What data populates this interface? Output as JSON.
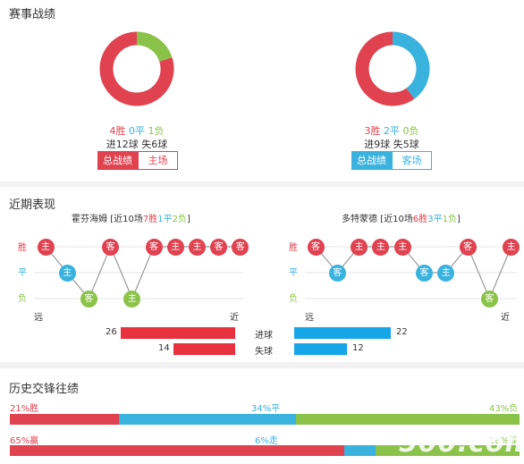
{
  "sections": {
    "record_title": "赛事战绩",
    "recent_title": "近期表现",
    "history_title": "历史交锋往绩"
  },
  "colors": {
    "win": "#e04250",
    "draw": "#3ab2de",
    "loss": "#8bc34a"
  },
  "home": {
    "pie": {
      "win": 4,
      "draw": 0,
      "loss": 1
    },
    "win_text": "4胜",
    "draw_text": "0平",
    "loss_text": "1负",
    "goals_text": "进12球",
    "conceded_text": "失6球",
    "btn_active": "总战绩",
    "btn_inactive": "主场",
    "team_name": "霍芬海姆",
    "recent_prefix": "[近10场",
    "recent_win": "7胜",
    "recent_draw": "1平",
    "recent_loss": "2负",
    "recent_suffix": "]",
    "far": "远",
    "near": "近",
    "goals_num": "26",
    "conceded_num": "14"
  },
  "away": {
    "pie": {
      "win": 3,
      "draw": 2,
      "loss": 0
    },
    "win_text": "3胜",
    "draw_text": "2平",
    "loss_text": "0负",
    "goals_text": "进9球",
    "conceded_text": "失5球",
    "btn_active": "总战绩",
    "btn_inactive": "客场",
    "team_name": "多特蒙德",
    "recent_prefix": "[近10场",
    "recent_win": "6胜",
    "recent_draw": "3平",
    "recent_loss": "1负",
    "recent_suffix": "]",
    "far": "远",
    "near": "近",
    "goals_num": "22",
    "conceded_num": "12"
  },
  "axis": {
    "win": "胜",
    "draw": "平",
    "loss": "负"
  },
  "bars_mid": {
    "goals": "进球",
    "conceded": "失球"
  },
  "home_form": [
    {
      "r": "win",
      "l": "主"
    },
    {
      "r": "draw",
      "l": "主"
    },
    {
      "r": "loss",
      "l": "客"
    },
    {
      "r": "win",
      "l": "客"
    },
    {
      "r": "loss",
      "l": "主"
    },
    {
      "r": "win",
      "l": "客"
    },
    {
      "r": "win",
      "l": "主"
    },
    {
      "r": "win",
      "l": "主"
    },
    {
      "r": "win",
      "l": "客"
    },
    {
      "r": "win",
      "l": "客"
    }
  ],
  "away_form": [
    {
      "r": "win",
      "l": "客"
    },
    {
      "r": "draw",
      "l": "客"
    },
    {
      "r": "win",
      "l": "主"
    },
    {
      "r": "win",
      "l": "主"
    },
    {
      "r": "win",
      "l": "主"
    },
    {
      "r": "draw",
      "l": "客"
    },
    {
      "r": "draw",
      "l": "主"
    },
    {
      "r": "win",
      "l": "客"
    },
    {
      "r": "loss",
      "l": "客"
    },
    {
      "r": "win",
      "l": "主"
    }
  ],
  "history": {
    "row1": {
      "win_label": "21%胜",
      "draw_label": "34%平",
      "loss_label": "43%负",
      "win": 21,
      "draw": 34,
      "loss": 43
    },
    "row2": {
      "win_label": "65%赢",
      "draw_label": "6%走",
      "loss_label": "28%输",
      "win": 65,
      "draw": 6,
      "loss": 28
    }
  },
  "watermark": "500.com"
}
